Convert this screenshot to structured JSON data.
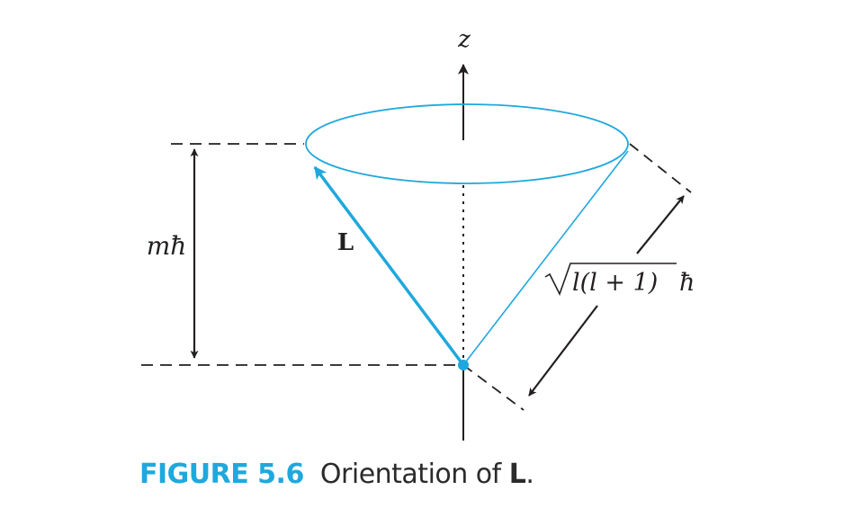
{
  "diagram": {
    "axis_label": "z",
    "vector_label": "L",
    "height_label": "mħ",
    "length_label": {
      "radicand": "l(l + 1)",
      "unit": "ħ"
    }
  },
  "caption": {
    "label": "FIGURE 5.6",
    "text_before": "Orientation of ",
    "bold_symbol": "L",
    "text_after": "."
  },
  "colors": {
    "accent": "#1fa8dd",
    "ink": "#231f20"
  }
}
